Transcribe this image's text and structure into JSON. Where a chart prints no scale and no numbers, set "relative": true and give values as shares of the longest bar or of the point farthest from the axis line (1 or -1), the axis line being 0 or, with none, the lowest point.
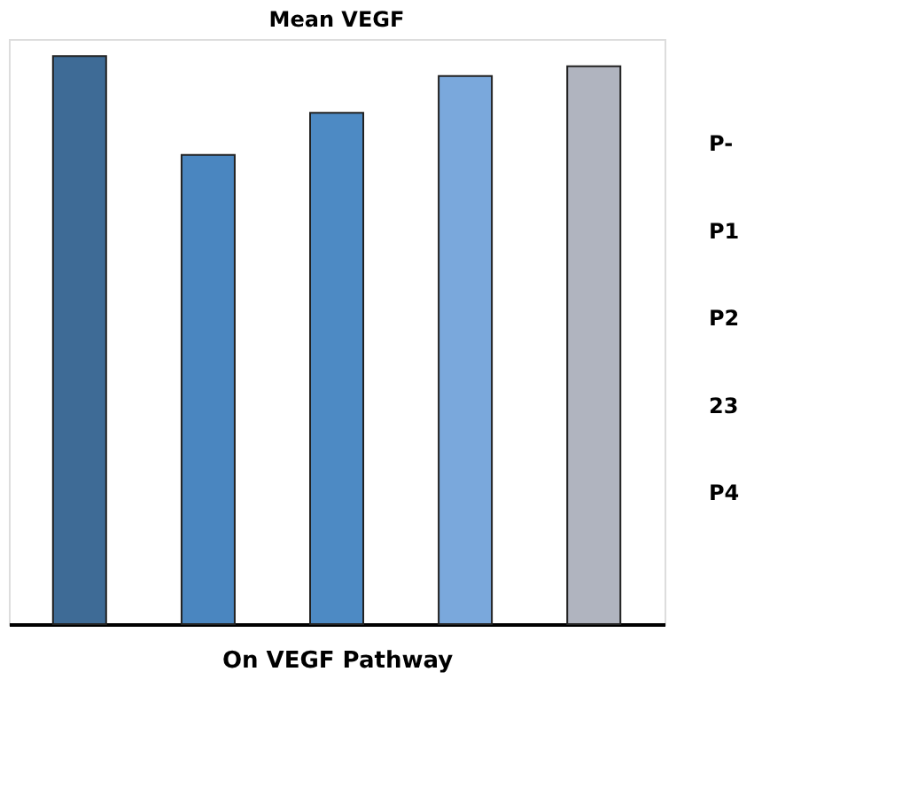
{
  "chart_data": {
    "type": "bar",
    "title": "Mean VEGF",
    "xlabel": "On VEGF Pathway",
    "relative": true,
    "tick_labels": false,
    "categories": [
      null,
      null,
      null,
      null,
      null
    ],
    "values": [
      1,
      0.826,
      0.9,
      0.965,
      0.982
    ],
    "colors": [
      "#3e6b96",
      "#4a86c0",
      "#4d8ac4",
      "#7aa8dc",
      "#b0b4bf"
    ],
    "annotations": [
      "P-",
      "P1",
      "P2",
      "23",
      "P4"
    ]
  }
}
